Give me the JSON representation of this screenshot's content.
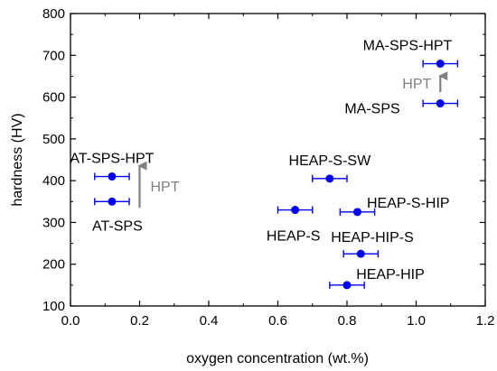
{
  "chart_data": {
    "type": "scatter",
    "title": "",
    "xlabel": "oxygen concentration (wt.%)",
    "ylabel": "hardness (HV)",
    "xlim": [
      0.0,
      1.2
    ],
    "ylim": [
      100,
      800
    ],
    "xticks": [
      "0.0",
      "0.2",
      "0.4",
      "0.6",
      "0.8",
      "1.0",
      "1.2"
    ],
    "yticks": [
      "100",
      "200",
      "300",
      "400",
      "500",
      "600",
      "700",
      "800"
    ],
    "grid": false,
    "point_color": "#0000ee",
    "arrow_color": "#808080",
    "points": [
      {
        "label": "AT-SPS-HPT",
        "x": 0.12,
        "y": 410,
        "xerr": 0.05
      },
      {
        "label": "AT-SPS",
        "x": 0.12,
        "y": 350,
        "xerr": 0.05
      },
      {
        "label": "HEAP-S-SW",
        "x": 0.75,
        "y": 405,
        "xerr": 0.05
      },
      {
        "label": "HEAP-S",
        "x": 0.65,
        "y": 330,
        "xerr": 0.05
      },
      {
        "label": "HEAP-S-HIP",
        "x": 0.83,
        "y": 325,
        "xerr": 0.05
      },
      {
        "label": "HEAP-HIP-S",
        "x": 0.84,
        "y": 225,
        "xerr": 0.05
      },
      {
        "label": "HEAP-HIP",
        "x": 0.8,
        "y": 150,
        "xerr": 0.05
      },
      {
        "label": "MA-SPS-HPT",
        "x": 1.07,
        "y": 680,
        "xerr": 0.05
      },
      {
        "label": "MA-SPS",
        "x": 1.07,
        "y": 585,
        "xerr": 0.05
      }
    ],
    "annotations": [
      {
        "text": "HPT",
        "x_from": 0.2,
        "y_from": 335,
        "x_to": 0.2,
        "y_to": 440
      },
      {
        "text": "HPT",
        "x_from": 1.07,
        "y_from": 612,
        "x_to": 1.07,
        "y_to": 655
      }
    ]
  }
}
